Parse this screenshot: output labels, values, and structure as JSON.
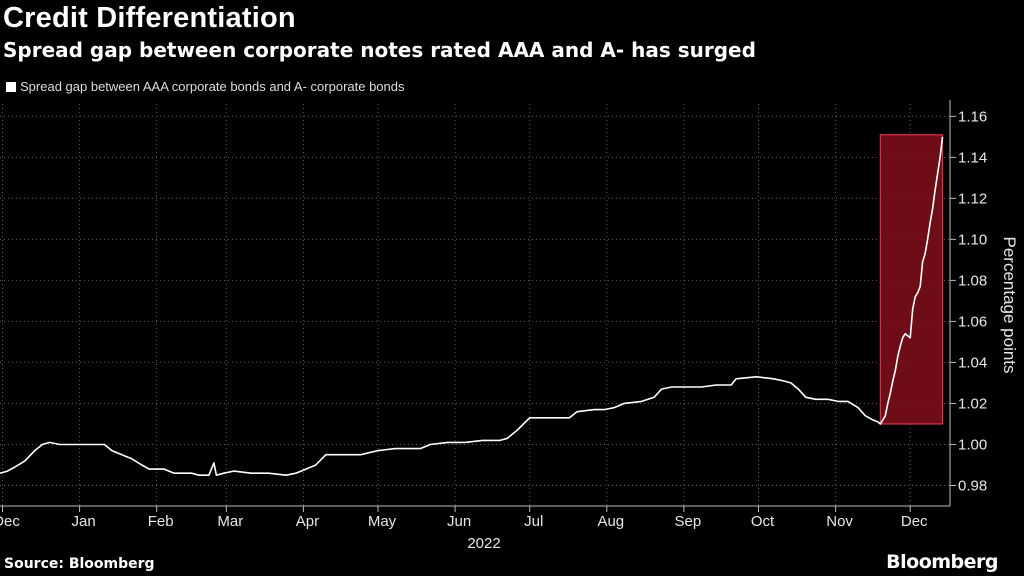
{
  "title": "Credit Differentiation",
  "subtitle": "Spread gap between corporate notes rated AAA and A- has surged",
  "source": "Source: Bloomberg",
  "brand": "Bloomberg",
  "colors": {
    "background": "#000000",
    "line": "#ffffff",
    "highlight_fill": "#7a0e1b",
    "highlight_stroke": "#e0314a",
    "grid": "#5a5a5a"
  },
  "chart_data": {
    "type": "line",
    "title": "Credit Differentiation",
    "subtitle": "Spread gap between corporate notes rated AAA and A- has surged",
    "ylabel": "Percentage points",
    "xlabel": "2022",
    "x_axis_year": "2022",
    "ylim": [
      0.97,
      1.166
    ],
    "yticks": [
      0.98,
      1.0,
      1.02,
      1.04,
      1.06,
      1.08,
      1.1,
      1.12,
      1.14,
      1.16
    ],
    "ytick_labels": [
      "0.98",
      "1.00",
      "1.02",
      "1.04",
      "1.06",
      "1.08",
      "1.10",
      "1.12",
      "1.14",
      "1.16"
    ],
    "xlim": [
      "2021-12-14",
      "2022-12-31"
    ],
    "xticks": [
      {
        "date": "2021-12-15",
        "label": "Dec"
      },
      {
        "date": "2022-01-15",
        "label": "Jan"
      },
      {
        "date": "2022-02-15",
        "label": "Feb"
      },
      {
        "date": "2022-03-15",
        "label": "Mar"
      },
      {
        "date": "2022-04-15",
        "label": "Apr"
      },
      {
        "date": "2022-05-15",
        "label": "May"
      },
      {
        "date": "2022-06-15",
        "label": "Jun"
      },
      {
        "date": "2022-07-15",
        "label": "Jul"
      },
      {
        "date": "2022-08-15",
        "label": "Aug"
      },
      {
        "date": "2022-09-15",
        "label": "Sep"
      },
      {
        "date": "2022-10-15",
        "label": "Oct"
      },
      {
        "date": "2022-11-15",
        "label": "Nov"
      },
      {
        "date": "2022-12-15",
        "label": "Dec"
      }
    ],
    "grid": true,
    "legend": "top-left",
    "series": [
      {
        "name": "Spread gap between AAA corporate bonds and A- corporate bonds",
        "color": "#ffffff",
        "points": [
          [
            "2021-12-14",
            0.986
          ],
          [
            "2021-12-17",
            0.987
          ],
          [
            "2021-12-20",
            0.989
          ],
          [
            "2021-12-24",
            0.992
          ],
          [
            "2021-12-28",
            0.997
          ],
          [
            "2021-12-31",
            1.0
          ],
          [
            "2022-01-03",
            1.001
          ],
          [
            "2022-01-07",
            1.0
          ],
          [
            "2022-01-14",
            1.0
          ],
          [
            "2022-01-21",
            1.0
          ],
          [
            "2022-01-25",
            1.0
          ],
          [
            "2022-01-28",
            0.997
          ],
          [
            "2022-02-01",
            0.995
          ],
          [
            "2022-02-05",
            0.993
          ],
          [
            "2022-02-09",
            0.99
          ],
          [
            "2022-02-12",
            0.988
          ],
          [
            "2022-02-18",
            0.988
          ],
          [
            "2022-02-22",
            0.986
          ],
          [
            "2022-03-01",
            0.986
          ],
          [
            "2022-03-04",
            0.985
          ],
          [
            "2022-03-08",
            0.985
          ],
          [
            "2022-03-10",
            0.991
          ],
          [
            "2022-03-11",
            0.985
          ],
          [
            "2022-03-14",
            0.986
          ],
          [
            "2022-03-18",
            0.987
          ],
          [
            "2022-03-25",
            0.986
          ],
          [
            "2022-04-01",
            0.986
          ],
          [
            "2022-04-08",
            0.985
          ],
          [
            "2022-04-12",
            0.986
          ],
          [
            "2022-04-16",
            0.988
          ],
          [
            "2022-04-20",
            0.99
          ],
          [
            "2022-04-24",
            0.995
          ],
          [
            "2022-05-01",
            0.995
          ],
          [
            "2022-05-08",
            0.995
          ],
          [
            "2022-05-15",
            0.997
          ],
          [
            "2022-05-22",
            0.998
          ],
          [
            "2022-06-01",
            0.998
          ],
          [
            "2022-06-05",
            1.0
          ],
          [
            "2022-06-12",
            1.001
          ],
          [
            "2022-06-19",
            1.001
          ],
          [
            "2022-06-26",
            1.002
          ],
          [
            "2022-07-03",
            1.002
          ],
          [
            "2022-07-06",
            1.003
          ],
          [
            "2022-07-10",
            1.007
          ],
          [
            "2022-07-15",
            1.013
          ],
          [
            "2022-07-22",
            1.013
          ],
          [
            "2022-07-31",
            1.013
          ],
          [
            "2022-08-03",
            1.016
          ],
          [
            "2022-08-10",
            1.017
          ],
          [
            "2022-08-14",
            1.017
          ],
          [
            "2022-08-18",
            1.018
          ],
          [
            "2022-08-22",
            1.02
          ],
          [
            "2022-08-29",
            1.021
          ],
          [
            "2022-09-03",
            1.023
          ],
          [
            "2022-09-06",
            1.027
          ],
          [
            "2022-09-10",
            1.028
          ],
          [
            "2022-09-16",
            1.028
          ],
          [
            "2022-09-22",
            1.028
          ],
          [
            "2022-09-28",
            1.029
          ],
          [
            "2022-10-04",
            1.029
          ],
          [
            "2022-10-06",
            1.032
          ],
          [
            "2022-10-14",
            1.033
          ],
          [
            "2022-10-21",
            1.032
          ],
          [
            "2022-10-25",
            1.031
          ],
          [
            "2022-10-28",
            1.03
          ],
          [
            "2022-10-31",
            1.027
          ],
          [
            "2022-11-03",
            1.023
          ],
          [
            "2022-11-07",
            1.022
          ],
          [
            "2022-11-12",
            1.022
          ],
          [
            "2022-11-16",
            1.021
          ],
          [
            "2022-11-20",
            1.021
          ],
          [
            "2022-11-24",
            1.018
          ],
          [
            "2022-11-27",
            1.014
          ],
          [
            "2022-11-30",
            1.012
          ],
          [
            "2022-12-02",
            1.011
          ],
          [
            "2022-12-03",
            1.01
          ],
          [
            "2022-12-05",
            1.014
          ],
          [
            "2022-12-06",
            1.02
          ],
          [
            "2022-12-07",
            1.025
          ],
          [
            "2022-12-08",
            1.031
          ],
          [
            "2022-12-09",
            1.036
          ],
          [
            "2022-12-10",
            1.043
          ],
          [
            "2022-12-11",
            1.048
          ],
          [
            "2022-12-12",
            1.052
          ],
          [
            "2022-12-13",
            1.054
          ],
          [
            "2022-12-14",
            1.053
          ],
          [
            "2022-12-15",
            1.052
          ],
          [
            "2022-12-16",
            1.066
          ],
          [
            "2022-12-17",
            1.072
          ],
          [
            "2022-12-18",
            1.074
          ],
          [
            "2022-12-19",
            1.077
          ],
          [
            "2022-12-20",
            1.089
          ],
          [
            "2022-12-21",
            1.093
          ],
          [
            "2022-12-22",
            1.1
          ],
          [
            "2022-12-23",
            1.108
          ],
          [
            "2022-12-24",
            1.115
          ],
          [
            "2022-12-25",
            1.124
          ],
          [
            "2022-12-26",
            1.132
          ],
          [
            "2022-12-27",
            1.14
          ],
          [
            "2022-12-28",
            1.15
          ]
        ]
      }
    ],
    "highlight_region": {
      "x_start": "2022-12-03",
      "x_end": "2022-12-28",
      "y_start": 1.01,
      "y_end": 1.151
    }
  }
}
